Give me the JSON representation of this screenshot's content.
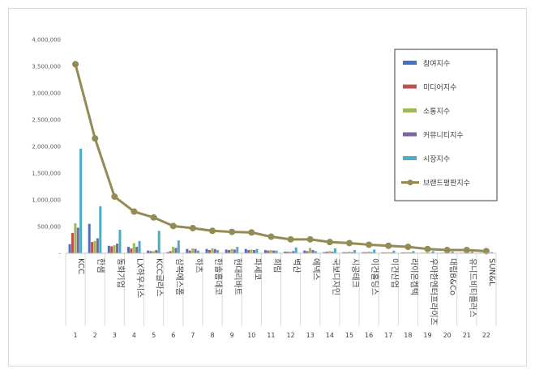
{
  "chart_data": {
    "type": "bar",
    "title": "",
    "xlabel": "",
    "ylabel": "",
    "ylim": [
      0,
      4000000
    ],
    "y_ticks": [
      0,
      500000,
      1000000,
      1500000,
      2000000,
      2500000,
      3000000,
      3500000,
      4000000
    ],
    "y_tick_labels": [
      "-",
      "500,000",
      "1,000,000",
      "1,500,000",
      "2,000,000",
      "2,500,000",
      "3,000,000",
      "3,500,000",
      "4,000,000"
    ],
    "grid": false,
    "legend_position": "top-right",
    "categories": [
      "KCC",
      "한샘",
      "동화기업",
      "LX하우시스",
      "KCC글라스",
      "삼목에스폼",
      "하츠",
      "한솔홈데코",
      "현대리바트",
      "파세코",
      "희림",
      "벽산",
      "에넥스",
      "국보디자인",
      "시공테크",
      "이건홀딩스",
      "이건산업",
      "라이온켐텍",
      "우아한엔터프라이즈",
      "대림B&Co",
      "유니드비티플러스",
      "SUN&L"
    ],
    "rank_labels": [
      "1",
      "2",
      "3",
      "4",
      "5",
      "6",
      "7",
      "8",
      "9",
      "10",
      "11",
      "12",
      "13",
      "14",
      "15",
      "16",
      "17",
      "18",
      "19",
      "20",
      "21",
      "22"
    ],
    "series": [
      {
        "name": "참여지수",
        "type": "bar",
        "color": "#4472c4",
        "values": [
          170000,
          550000,
          140000,
          120000,
          50000,
          20000,
          80000,
          80000,
          70000,
          80000,
          60000,
          30000,
          50000,
          20000,
          20000,
          20000,
          15000,
          15000,
          10000,
          10000,
          10000,
          10000
        ]
      },
      {
        "name": "미디어지수",
        "type": "bar",
        "color": "#c0504d",
        "values": [
          380000,
          210000,
          130000,
          90000,
          40000,
          40000,
          50000,
          60000,
          60000,
          60000,
          50000,
          30000,
          40000,
          30000,
          20000,
          20000,
          15000,
          15000,
          10000,
          10000,
          10000,
          10000
        ]
      },
      {
        "name": "소통지수",
        "type": "bar",
        "color": "#9bbb59",
        "values": [
          560000,
          230000,
          150000,
          190000,
          40000,
          120000,
          90000,
          90000,
          80000,
          70000,
          60000,
          30000,
          100000,
          40000,
          30000,
          30000,
          20000,
          20000,
          15000,
          15000,
          15000,
          15000
        ]
      },
      {
        "name": "커뮤니티지수",
        "type": "bar",
        "color": "#8064a2",
        "values": [
          480000,
          280000,
          180000,
          120000,
          60000,
          100000,
          80000,
          80000,
          70000,
          60000,
          50000,
          40000,
          60000,
          30000,
          20000,
          20000,
          15000,
          15000,
          10000,
          10000,
          10000,
          10000
        ]
      },
      {
        "name": "시장지수",
        "type": "bar",
        "color": "#4bacc6",
        "values": [
          1960000,
          880000,
          440000,
          230000,
          420000,
          240000,
          50000,
          60000,
          120000,
          80000,
          50000,
          110000,
          40000,
          90000,
          60000,
          70000,
          50000,
          40000,
          40000,
          30000,
          30000,
          20000
        ]
      },
      {
        "name": "브랜드평판지수",
        "type": "line",
        "color": "#948a54",
        "values": [
          3540000,
          2150000,
          1060000,
          780000,
          670000,
          510000,
          470000,
          420000,
          400000,
          390000,
          310000,
          260000,
          260000,
          210000,
          190000,
          160000,
          140000,
          120000,
          80000,
          60000,
          60000,
          40000
        ]
      }
    ]
  }
}
